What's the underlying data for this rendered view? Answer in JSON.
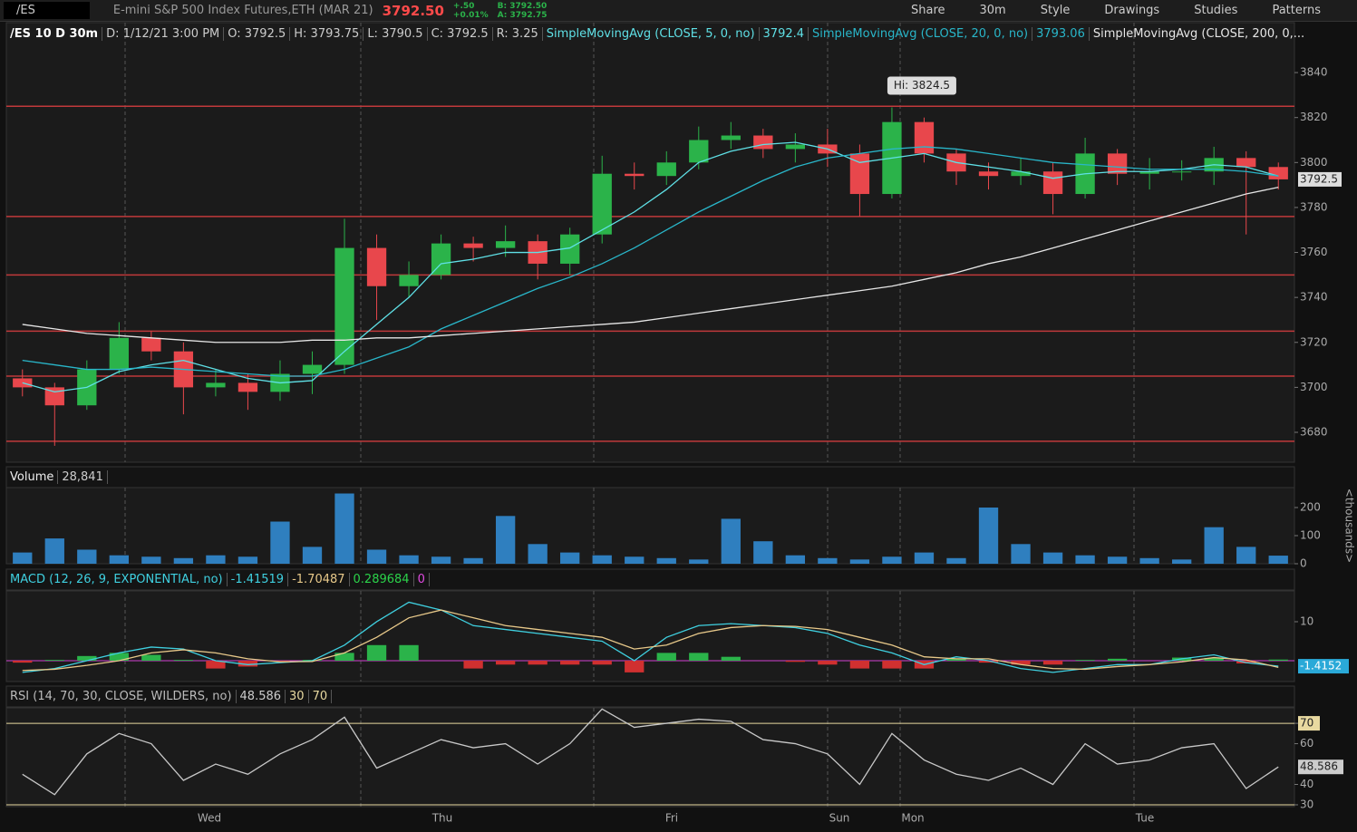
{
  "toolbar": {
    "symbol": "/ES",
    "description": "E-mini S&P 500 Index Futures,ETH (MAR 21)",
    "last": "3792.50",
    "change": "+.50",
    "change_pct": "+0.01%",
    "bid": "B: 3792.50",
    "ask": "A: 3792.75",
    "buttons": [
      "Share",
      "30m",
      "Style",
      "Drawings",
      "Studies",
      "Patterns"
    ]
  },
  "info": {
    "chart": "/ES 10 D 30m",
    "date": "D: 1/12/21 3:00 PM",
    "open": "O: 3792.5",
    "high": "H: 3793.75",
    "low": "L: 3790.5",
    "close": "C: 3792.5",
    "range": "R: 3.25"
  },
  "time_axis": [
    "Wed",
    "Thu",
    "Fri",
    "Sun",
    "Mon",
    "Tue"
  ],
  "chart_data": [
    {
      "type": "candlestick",
      "annotation": "Hi: 3824.5",
      "last_label": "3792.5",
      "open": [
        3704,
        3700,
        3692,
        3708,
        3722,
        3716,
        3700,
        3702,
        3698,
        3706,
        3710,
        3762,
        3745,
        3750,
        3764,
        3762,
        3765,
        3755,
        3768,
        3795,
        3794,
        3800,
        3810,
        3812,
        3806,
        3808,
        3804,
        3786,
        3818,
        3804,
        3796,
        3794,
        3796,
        3786,
        3804,
        3795,
        3796,
        3796,
        3802,
        3798
      ],
      "high": [
        3708,
        3702,
        3712,
        3729,
        3725,
        3720,
        3708,
        3706,
        3712,
        3716,
        3775,
        3768,
        3756,
        3768,
        3767,
        3772,
        3768,
        3771,
        3803,
        3800,
        3805,
        3816,
        3818,
        3815,
        3813,
        3815,
        3808,
        3824.5,
        3820,
        3806,
        3800,
        3802,
        3800,
        3811,
        3806,
        3802,
        3801,
        3807,
        3805,
        3800
      ],
      "low": [
        3696,
        3674,
        3690,
        3706,
        3712,
        3688,
        3696,
        3690,
        3694,
        3697,
        3706,
        3730,
        3740,
        3748,
        3756,
        3758,
        3748,
        3750,
        3764,
        3788,
        3790,
        3797,
        3806,
        3802,
        3800,
        3798,
        3776,
        3784,
        3800,
        3790,
        3788,
        3790,
        3777,
        3784,
        3790,
        3788,
        3792,
        3790,
        3768,
        3788
      ],
      "close": [
        3700,
        3692,
        3708,
        3722,
        3716,
        3700,
        3702,
        3698,
        3706,
        3710,
        3762,
        3745,
        3750,
        3764,
        3762,
        3765,
        3755,
        3768,
        3795,
        3794,
        3800,
        3810,
        3812,
        3806,
        3808,
        3804,
        3786,
        3818,
        3804,
        3796,
        3794,
        3796,
        3786,
        3804,
        3795,
        3796,
        3796,
        3802,
        3798,
        3792.5
      ],
      "up_color": "#2bb34a",
      "down_color": "#e8474c",
      "level_color": "#c0393b",
      "levels": [
        3825,
        3776,
        3750,
        3725,
        3705,
        3676
      ],
      "series": [
        {
          "name": "SimpleMovingAvg (CLOSE, 5, 0, no)",
          "current": 3792.4,
          "color": "#5fe0e6",
          "values": [
            3702,
            3698,
            3700,
            3707,
            3710,
            3712,
            3708,
            3704,
            3702,
            3703,
            3716,
            3728,
            3740,
            3755,
            3757,
            3760,
            3760,
            3762,
            3770,
            3778,
            3788,
            3800,
            3805,
            3808,
            3809,
            3806,
            3800,
            3802,
            3804,
            3800,
            3798,
            3796,
            3793,
            3795,
            3796,
            3796,
            3797,
            3799,
            3798,
            3794
          ]
        },
        {
          "name": "SimpleMovingAvg (CLOSE, 20, 0, no)",
          "current": 3793.06,
          "color": "#29b6c9",
          "values": [
            3712,
            3710,
            3708,
            3708,
            3709,
            3708,
            3707,
            3706,
            3705,
            3705,
            3708,
            3713,
            3718,
            3726,
            3732,
            3738,
            3744,
            3749,
            3755,
            3762,
            3770,
            3778,
            3785,
            3792,
            3798,
            3802,
            3804,
            3806,
            3807,
            3806,
            3804,
            3802,
            3800,
            3799,
            3798,
            3797,
            3797,
            3797,
            3796,
            3794
          ]
        },
        {
          "name": "SimpleMovingAvg (CLOSE, 200, 0,...",
          "color": "#e6e6e6",
          "values": [
            3728,
            3726,
            3724,
            3723,
            3722,
            3721,
            3720,
            3720,
            3720,
            3721,
            3721,
            3722,
            3722,
            3723,
            3724,
            3725,
            3726,
            3727,
            3728,
            3729,
            3731,
            3733,
            3735,
            3737,
            3739,
            3741,
            3743,
            3745,
            3748,
            3751,
            3755,
            3758,
            3762,
            3766,
            3770,
            3774,
            3778,
            3782,
            3786,
            3789
          ]
        }
      ],
      "ylim": [
        3666.7,
        3862.2
      ],
      "yticks": [
        3680,
        3700,
        3720,
        3740,
        3760,
        3780,
        3800,
        3820,
        3840
      ]
    },
    {
      "type": "bar",
      "title": "Volume",
      "current_label": "28,841",
      "unit_label": "<thousands>",
      "color": "#2f7fbf",
      "values": [
        40,
        90,
        50,
        30,
        25,
        20,
        30,
        25,
        150,
        60,
        250,
        50,
        30,
        25,
        20,
        170,
        70,
        40,
        30,
        25,
        20,
        15,
        160,
        80,
        30,
        20,
        15,
        25,
        40,
        20,
        200,
        70,
        40,
        30,
        25,
        20,
        15,
        130,
        60,
        28.841
      ],
      "ylim": [
        0,
        271
      ],
      "yticks": [
        0,
        100,
        200
      ]
    },
    {
      "type": "macd",
      "title": "MACD (12, 26, 9, EXPONENTIAL, no)",
      "current": [
        -1.41519,
        -1.70487,
        0.289684,
        0
      ],
      "tag": -1.4152,
      "series": [
        {
          "color": "#3fd0e0",
          "values": [
            -3,
            -2,
            0,
            2,
            3.5,
            3,
            0,
            -1,
            -0.5,
            0,
            4,
            10,
            15,
            13,
            9,
            8,
            7,
            6,
            5,
            0,
            6,
            9,
            9.5,
            9,
            8.5,
            7,
            4,
            2,
            -1,
            1,
            0,
            -2,
            -3,
            -2,
            -1,
            -1,
            0.5,
            1.5,
            -0.5,
            -1.41519
          ]
        },
        {
          "color": "#e8c98a",
          "values": [
            -2.5,
            -2.2,
            -1.2,
            0,
            2,
            2.8,
            2,
            0.5,
            -0.3,
            -0.2,
            2,
            6,
            11,
            13,
            11,
            9,
            8,
            7,
            6,
            3,
            4,
            7,
            8.5,
            9,
            8.8,
            8,
            6,
            4,
            1,
            0.5,
            0.5,
            -1,
            -2,
            -2.2,
            -1.5,
            -1,
            -0.3,
            0.8,
            0.2,
            -1.70487
          ]
        }
      ],
      "histogram": [
        -0.5,
        0.2,
        1.2,
        2,
        1.5,
        0.2,
        -2,
        -1.5,
        -0.2,
        0.2,
        2,
        4,
        4,
        0,
        -2,
        -1,
        -1,
        -1,
        -1,
        -3,
        2,
        2,
        1,
        0,
        -0.3,
        -1,
        -2,
        -2,
        -2,
        0.5,
        -0.5,
        -1,
        -1,
        0.2,
        0.5,
        0,
        0.8,
        0.7,
        -0.7,
        0.289684
      ],
      "ylim": [
        -5.35,
        17.9
      ],
      "yticks": [
        10
      ]
    },
    {
      "type": "line",
      "title": "RSI (14, 70, 30, CLOSE, WILDERS, no)",
      "current": 48.586,
      "bands": [
        30,
        70
      ],
      "color": "#c8c8c8",
      "values": [
        45,
        35,
        55,
        65,
        60,
        42,
        50,
        45,
        55,
        62,
        73,
        48,
        55,
        62,
        58,
        60,
        50,
        60,
        77,
        68,
        70,
        72,
        71,
        62,
        60,
        55,
        40,
        65,
        52,
        45,
        42,
        48,
        40,
        60,
        50,
        52,
        58,
        60,
        38,
        48.586
      ],
      "ylim": [
        29.1,
        77.6
      ],
      "yticks": [
        30,
        40,
        60,
        70
      ]
    }
  ]
}
